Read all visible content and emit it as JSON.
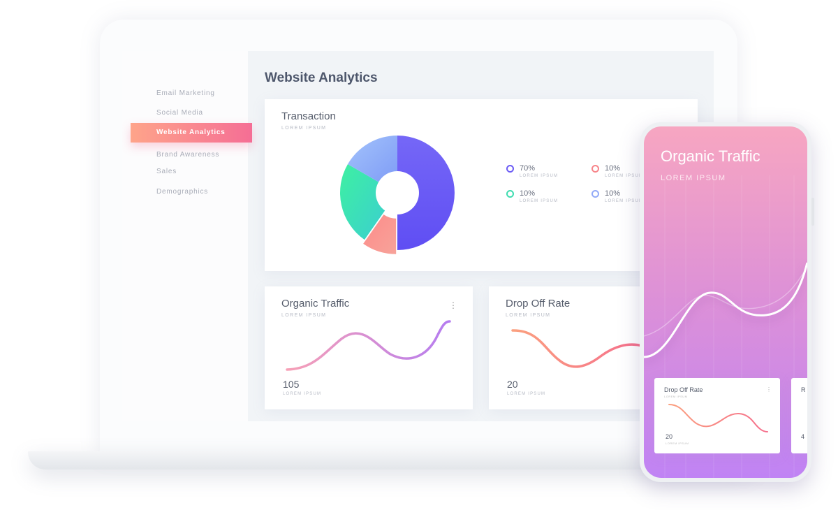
{
  "sidebar": {
    "items": [
      {
        "label": "Email Marketing"
      },
      {
        "label": "Social Media"
      },
      {
        "label": "Website Analytics",
        "active": true
      },
      {
        "label": "Brand Awareness"
      },
      {
        "label": "Sales"
      },
      {
        "label": "Demographics"
      }
    ]
  },
  "main": {
    "title": "Website Analytics",
    "transaction": {
      "title": "Transaction",
      "subtitle": "LOREM IPSUM",
      "legend": [
        {
          "value": "70%",
          "label": "LOREM IPSUM",
          "color": "#6c5cf5"
        },
        {
          "value": "10%",
          "label": "LOREM IPSUM",
          "color": "#f7858a"
        },
        {
          "value": "10%",
          "label": "LOREM IPSUM",
          "color": "#3fdcb0"
        },
        {
          "value": "10%",
          "label": "LOREM IPSUM",
          "color": "#93aaf7"
        }
      ]
    },
    "organic": {
      "title": "Organic Traffic",
      "subtitle": "LOREM IPSUM",
      "value": "105",
      "value_label": "LOREM IPSUM",
      "menu": "⋮"
    },
    "dropoff": {
      "title": "Drop Off Rate",
      "subtitle": "LOREM IPSUM",
      "value": "20",
      "value_label": "LOREM IPSUM"
    }
  },
  "phone": {
    "title": "Organic Traffic",
    "subtitle": "LOREM IPSUM",
    "card": {
      "title": "Drop Off Rate",
      "subtitle": "LOREM IPSUM",
      "value": "20",
      "value_label": "LOREM IPSUM",
      "menu": "⋮"
    },
    "card2": {
      "title": "R",
      "value": "4"
    }
  },
  "colors": {
    "accent_start": "#fea48a",
    "accent_end": "#f56e95",
    "phone_top": "#f7a6c1",
    "phone_bottom": "#c083f4"
  }
}
